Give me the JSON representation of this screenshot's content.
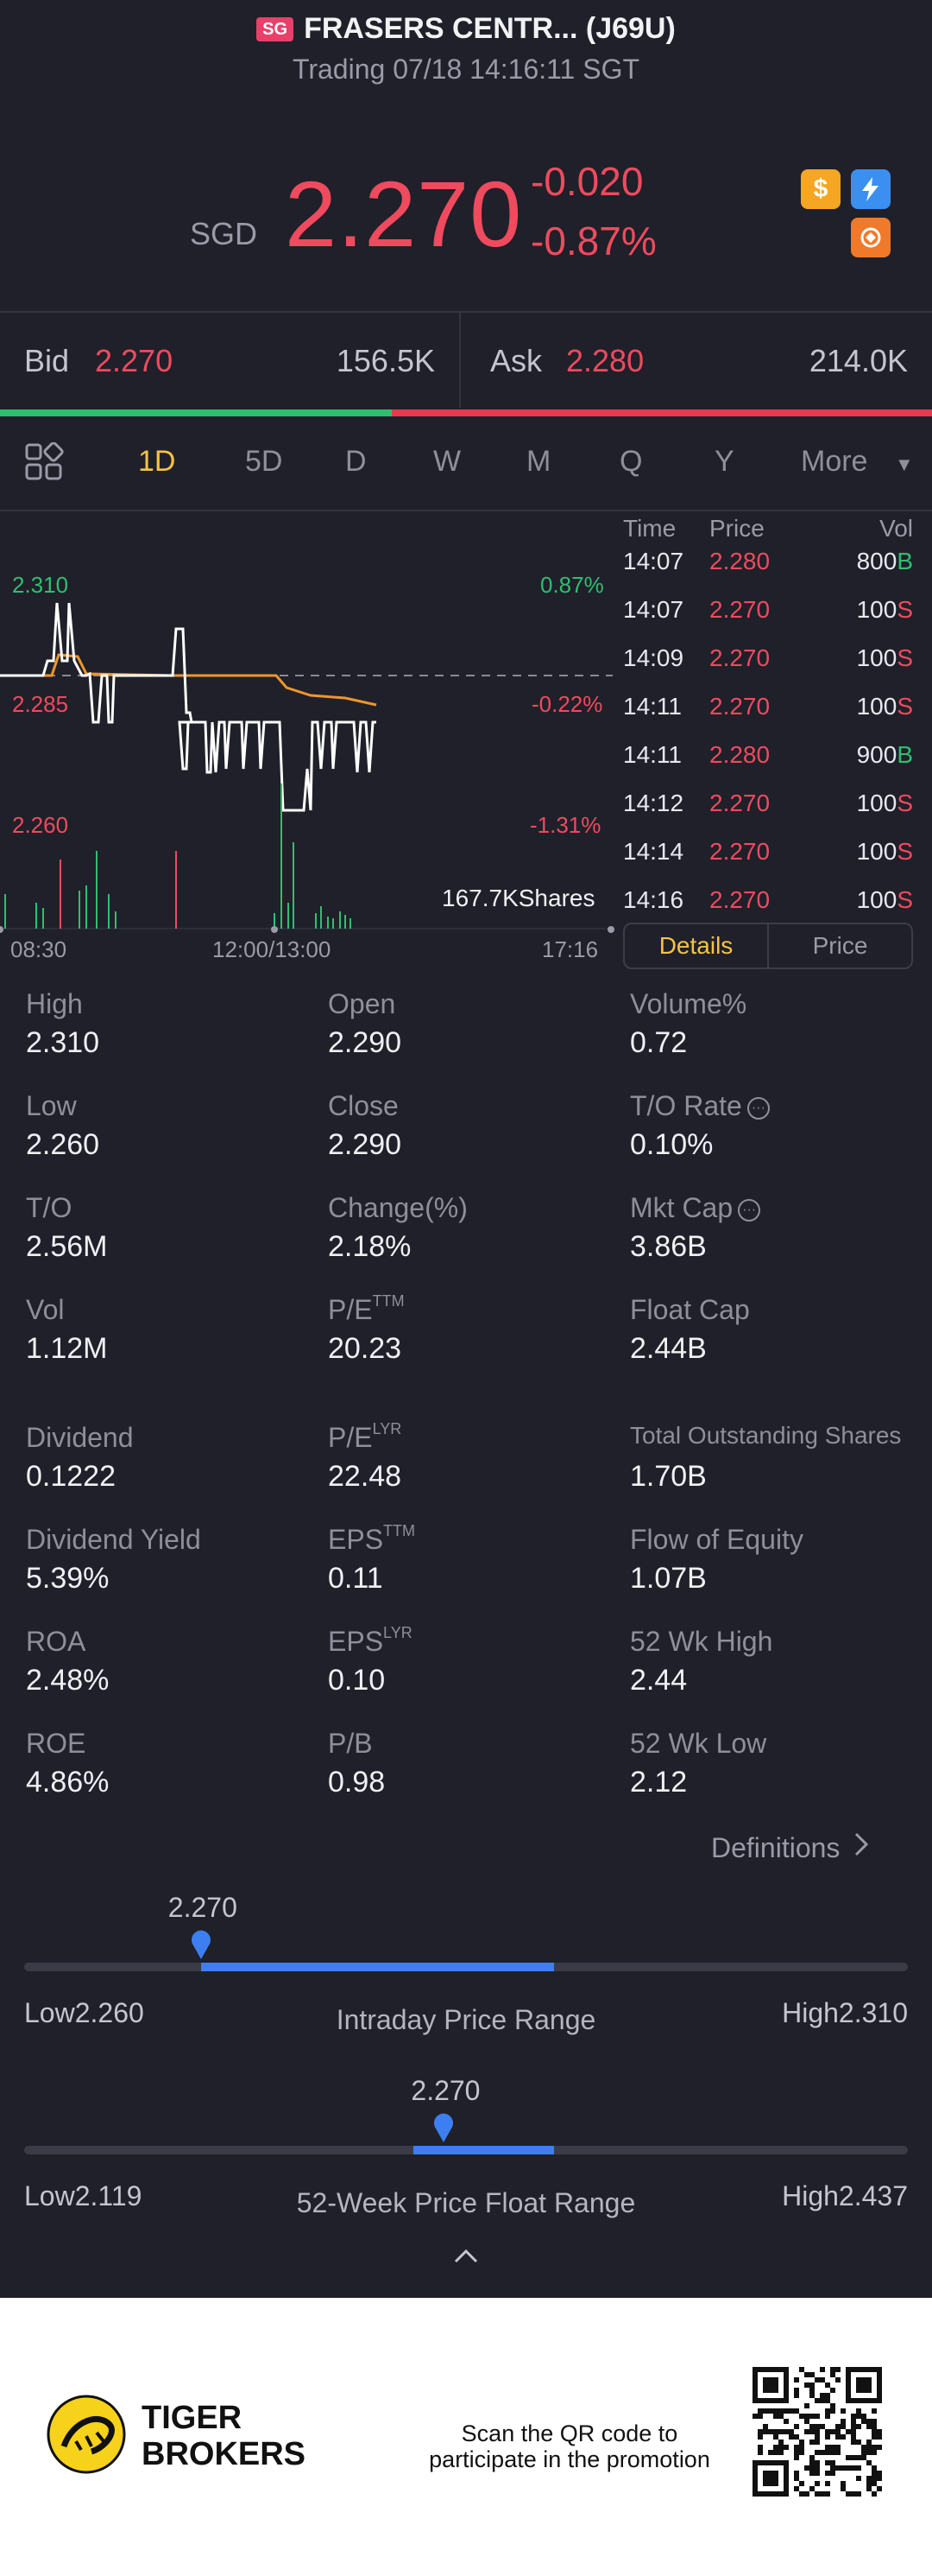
{
  "header": {
    "market_badge": "SG",
    "title": "FRASERS CENTR... (J69U)",
    "subtitle": "Trading 07/18 14:16:11 SGT"
  },
  "quote": {
    "currency": "SGD",
    "price": "2.270",
    "change": "-0.020",
    "change_pct": "-0.87%",
    "icons": [
      "dollar-icon",
      "lightning-icon",
      "swap-icon"
    ]
  },
  "bid_ask": {
    "bid_label": "Bid",
    "bid_price": "2.270",
    "bid_qty": "156.5K",
    "ask_label": "Ask",
    "ask_price": "2.280",
    "ask_qty": "214.0K",
    "bid_share": 0.42
  },
  "tabs": [
    "1D",
    "5D",
    "D",
    "W",
    "M",
    "Q",
    "Y",
    "More"
  ],
  "active_tab": "1D",
  "chart": {
    "y_labels": [
      {
        "price": "2.310",
        "pct": "0.87%"
      },
      {
        "price": "2.285",
        "pct": "-0.22%"
      },
      {
        "price": "2.260",
        "pct": "-1.31%"
      }
    ],
    "volume_label": "167.7KShares",
    "x_labels": [
      "08:30",
      "12:00/13:00",
      "17:16"
    ]
  },
  "tick_table": {
    "headers": [
      "Time",
      "Price",
      "Vol"
    ],
    "rows": [
      {
        "time": "14:07",
        "price": "2.280",
        "vol": "800",
        "side": "B"
      },
      {
        "time": "14:07",
        "price": "2.270",
        "vol": "100",
        "side": "S"
      },
      {
        "time": "14:09",
        "price": "2.270",
        "vol": "100",
        "side": "S"
      },
      {
        "time": "14:11",
        "price": "2.270",
        "vol": "100",
        "side": "S"
      },
      {
        "time": "14:11",
        "price": "2.280",
        "vol": "900",
        "side": "B"
      },
      {
        "time": "14:12",
        "price": "2.270",
        "vol": "100",
        "side": "S"
      },
      {
        "time": "14:14",
        "price": "2.270",
        "vol": "100",
        "side": "S"
      },
      {
        "time": "14:16",
        "price": "2.270",
        "vol": "100",
        "side": "S"
      }
    ]
  },
  "toggle": {
    "details": "Details",
    "price": "Price"
  },
  "stats": {
    "c1": [
      {
        "label": "High",
        "value": "2.310"
      },
      {
        "label": "Low",
        "value": "2.260"
      },
      {
        "label": "T/O",
        "value": "2.56M"
      },
      {
        "label": "Vol",
        "value": "1.12M"
      },
      {
        "label": "Dividend",
        "value": "0.1222"
      },
      {
        "label": "Dividend Yield",
        "value": "5.39%"
      },
      {
        "label": "ROA",
        "value": "2.48%"
      },
      {
        "label": "ROE",
        "value": "4.86%"
      }
    ],
    "c2": [
      {
        "label": "Open",
        "value": "2.290"
      },
      {
        "label": "Close",
        "value": "2.290"
      },
      {
        "label": "Change(%)",
        "value": "2.18%"
      },
      {
        "label": "P/E",
        "sup": "TTM",
        "value": "20.23"
      },
      {
        "label": "P/E",
        "sup": "LYR",
        "value": "22.48"
      },
      {
        "label": "EPS",
        "sup": "TTM",
        "value": "0.11"
      },
      {
        "label": "EPS",
        "sup": "LYR",
        "value": "0.10"
      },
      {
        "label": "P/B",
        "value": "0.98"
      }
    ],
    "c3": [
      {
        "label": "Volume%",
        "value": "0.72"
      },
      {
        "label": "T/O Rate",
        "value": "0.10%"
      },
      {
        "label": "Mkt Cap",
        "value": "3.86B"
      },
      {
        "label": "Float Cap",
        "value": "2.44B"
      },
      {
        "label": "Total Outstanding Shares",
        "value": "1.70B"
      },
      {
        "label": "Flow of Equity",
        "value": "1.07B"
      },
      {
        "label": "52 Wk High",
        "value": "2.44"
      },
      {
        "label": "52 Wk Low",
        "value": "2.12"
      }
    ]
  },
  "definitions_label": "Definitions",
  "ranges": [
    {
      "title": "Intraday Price Range",
      "current": "2.270",
      "low_label": "Low",
      "low": "2.260",
      "high_label": "High",
      "high": "2.310",
      "marker_fraction": 0.2,
      "fill_from": 0.2,
      "fill_to": 0.6
    },
    {
      "title": "52-Week Price Float Range",
      "current": "2.270",
      "low_label": "Low",
      "low": "2.119",
      "high_label": "High",
      "high": "2.437",
      "marker_fraction": 0.475,
      "fill_from": 0.44,
      "fill_to": 0.6
    }
  ],
  "footer": {
    "brand_line1": "TIGER",
    "brand_line2": "BROKERS",
    "promo_line1": "Scan the QR code to",
    "promo_line2": "participate in the promotion"
  },
  "colors": {
    "up": "#2fbf71",
    "down": "#f04a5e",
    "accent": "#f6c343",
    "range": "#3d7ff0"
  }
}
